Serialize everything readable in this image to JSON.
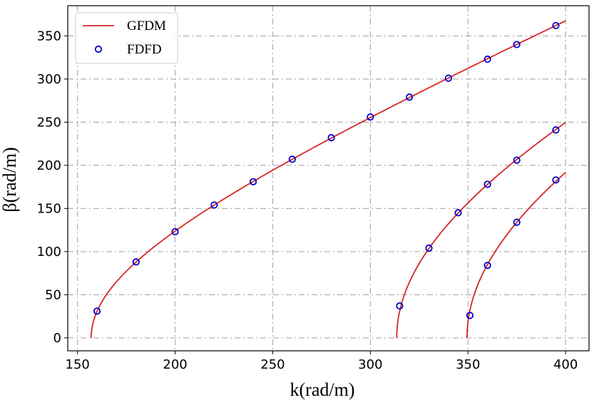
{
  "chart_data": {
    "type": "line",
    "xlabel": "k(rad/m)",
    "ylabel": "β(rad/m)",
    "xlim": [
      145,
      412
    ],
    "ylim": [
      -15,
      385
    ],
    "xticks": [
      150,
      200,
      250,
      300,
      350,
      400
    ],
    "yticks": [
      0,
      50,
      100,
      150,
      200,
      250,
      300,
      350
    ],
    "grid": true,
    "legend_position": "top-left",
    "legend": [
      {
        "label": "GFDM",
        "marker": "line",
        "color": "#d62728"
      },
      {
        "label": "FDFD",
        "marker": "circle",
        "color": "#0000cc"
      }
    ],
    "gfdm_series": [
      {
        "name": "GFDM",
        "cutoff_k": 157,
        "x_end": 400,
        "color": "#d62728"
      },
      {
        "name": "GFDM",
        "cutoff_k": 313.5,
        "x_end": 400,
        "color": "#d62728"
      },
      {
        "name": "GFDM",
        "cutoff_k": 349.5,
        "x_end": 400,
        "color": "#d62728"
      }
    ],
    "fdfd_series": [
      {
        "name": "FDFD",
        "color": "#0000cc",
        "points": [
          [
            160,
            31
          ],
          [
            180,
            88
          ],
          [
            200,
            123
          ],
          [
            220,
            154
          ],
          [
            240,
            181
          ],
          [
            260,
            207
          ],
          [
            280,
            232
          ],
          [
            300,
            256
          ],
          [
            320,
            279
          ],
          [
            340,
            301
          ],
          [
            360,
            323
          ],
          [
            375,
            340
          ],
          [
            395,
            362
          ]
        ]
      },
      {
        "name": "FDFD",
        "color": "#0000cc",
        "points": [
          [
            315,
            37
          ],
          [
            330,
            104
          ],
          [
            345,
            145
          ],
          [
            360,
            178
          ],
          [
            375,
            206
          ],
          [
            395,
            241
          ]
        ]
      },
      {
        "name": "FDFD",
        "color": "#0000cc",
        "points": [
          [
            351,
            26
          ],
          [
            360,
            84
          ],
          [
            375,
            134
          ],
          [
            395,
            183
          ]
        ]
      }
    ]
  }
}
